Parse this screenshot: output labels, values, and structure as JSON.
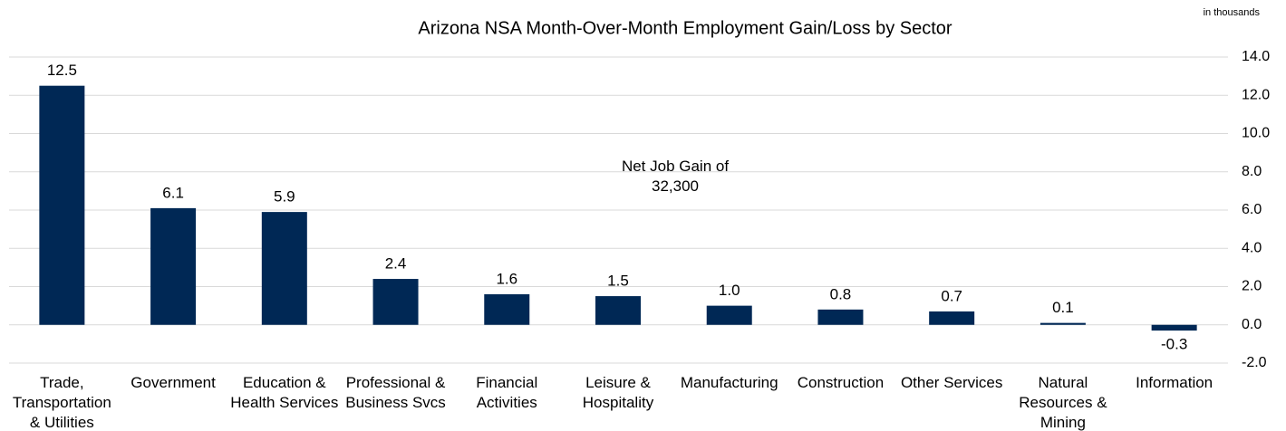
{
  "chart_data": {
    "type": "bar",
    "title": "Arizona NSA Month-Over-Month  Employment Gain/Loss by Sector",
    "unit_label": "in thousands",
    "annotation": "Net Job Gain of 32,300",
    "categories": [
      "Trade, Transportation & Utilities",
      "Government",
      "Education & Health Services",
      "Professional & Business Svcs",
      "Financial Activities",
      "Leisure & Hospitality",
      "Manufacturing",
      "Construction",
      "Other Services",
      "Natural Resources & Mining",
      "Information"
    ],
    "values": [
      12.5,
      6.1,
      5.9,
      2.4,
      1.6,
      1.5,
      1.0,
      0.8,
      0.7,
      0.1,
      -0.3
    ],
    "value_labels": [
      "12.5",
      "6.1",
      "5.9",
      "2.4",
      "1.6",
      "1.5",
      "1.0",
      "0.8",
      "0.7",
      "0.1",
      "-0.3"
    ],
    "color": "#002855",
    "ylim": [
      -2,
      14
    ],
    "yticks": [
      {
        "value": -2,
        "label": "-2.0"
      },
      {
        "value": 0,
        "label": "0.0"
      },
      {
        "value": 2,
        "label": "2.0"
      },
      {
        "value": 4,
        "label": "4.0"
      },
      {
        "value": 6,
        "label": "6.0"
      },
      {
        "value": 8,
        "label": "8.0"
      },
      {
        "value": 10,
        "label": "10.0"
      },
      {
        "value": 12,
        "label": "12.0"
      },
      {
        "value": 14,
        "label": "14.0"
      }
    ],
    "grid": true
  }
}
